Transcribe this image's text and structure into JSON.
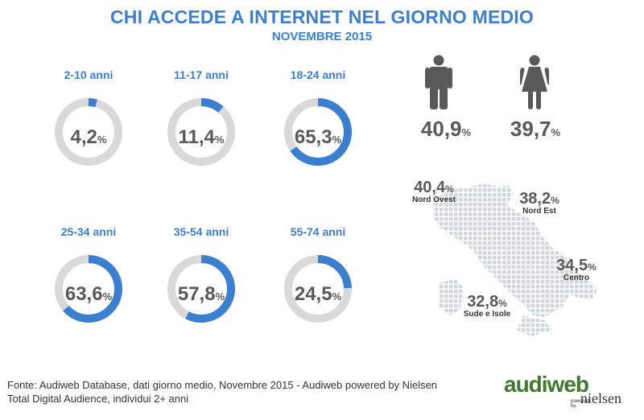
{
  "title": "CHI ACCEDE A INTERNET NEL GIORNO MEDIO",
  "subtitle": "NOVEMBRE 2015",
  "colors": {
    "accent": "#3b7fd0",
    "track": "#d9d9d9",
    "text": "#595959"
  },
  "chart_data": [
    {
      "type": "pie",
      "subtype": "donut",
      "categories": [
        "2-10 anni",
        "11-17 anni",
        "18-24 anni",
        "25-34 anni",
        "35-54 anni",
        "55-74 anni"
      ],
      "values": [
        4.2,
        11.4,
        65.3,
        63.6,
        57.8,
        24.5
      ],
      "value_labels": [
        "4,2",
        "11,4",
        "65,3",
        "63,6",
        "57,8",
        "24,5"
      ],
      "unit": "%"
    }
  ],
  "gender": [
    {
      "icon": "male-icon",
      "value": "40,9",
      "unit": "%"
    },
    {
      "icon": "female-icon",
      "value": "39,7",
      "unit": "%"
    }
  ],
  "regions": [
    {
      "name": "Nord Ovest",
      "value": "40,4",
      "unit": "%"
    },
    {
      "name": "Nord Est",
      "value": "38,2",
      "unit": "%"
    },
    {
      "name": "Centro",
      "value": "34,5",
      "unit": "%"
    },
    {
      "name": "Sude e Isole",
      "value": "32,8",
      "unit": "%"
    }
  ],
  "footer": {
    "line1": "Fonte: Audiweb Database, dati giorno medio, Novembre 2015 - Audiweb powered by Nielsen",
    "line2": "Total Digital Audience, individui 2+ anni"
  },
  "logo": {
    "main": "audiweb",
    "powered": "powered by",
    "nielsen": "nielsen"
  }
}
